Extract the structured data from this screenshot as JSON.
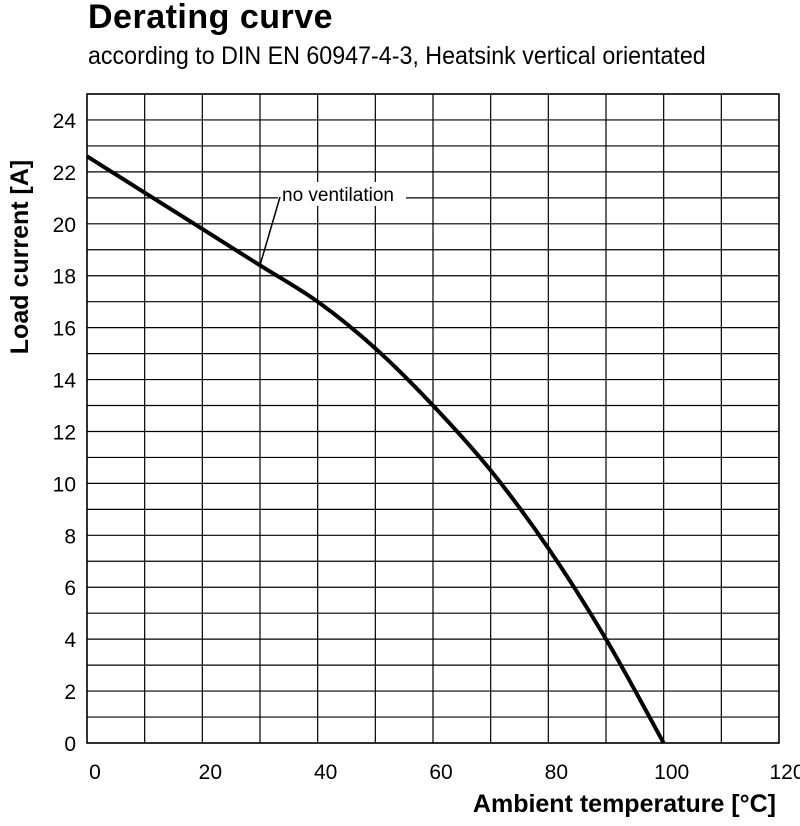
{
  "chart_data": {
    "type": "line",
    "title": "Derating curve",
    "subtitle": "according to DIN EN 60947-4-3, Heatsink vertical orientated",
    "xlabel": "Ambient temperature [°C]",
    "ylabel": "Load current [A]",
    "xlim": [
      0,
      120
    ],
    "ylim": [
      0,
      25
    ],
    "x_ticks": [
      0,
      20,
      40,
      60,
      80,
      100,
      120
    ],
    "y_ticks": [
      0,
      2,
      4,
      6,
      8,
      10,
      12,
      14,
      16,
      18,
      20,
      22,
      24
    ],
    "grid": true,
    "series": [
      {
        "name": "no ventilation",
        "x": [
          0,
          10,
          20,
          30,
          40,
          50,
          60,
          70,
          80,
          90,
          100
        ],
        "y": [
          22.6,
          21.2,
          19.8,
          18.4,
          17.0,
          15.2,
          13.0,
          10.5,
          7.5,
          4.0,
          0
        ]
      }
    ],
    "annotations": [
      {
        "text": "no ventilation",
        "x": 30,
        "y": 18.4
      }
    ]
  }
}
